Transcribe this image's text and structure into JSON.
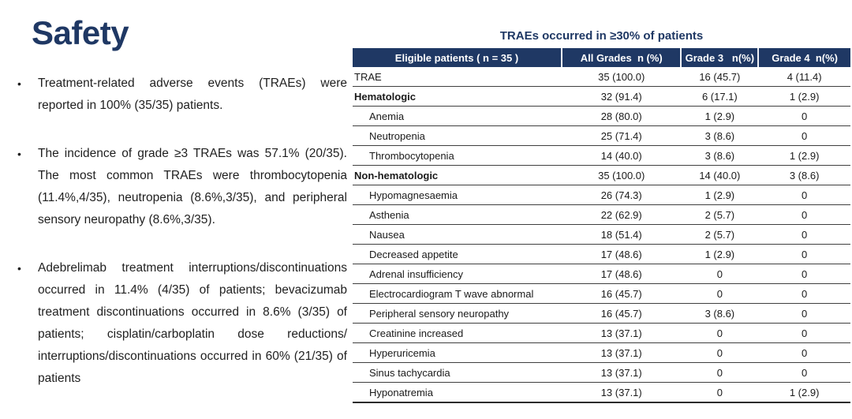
{
  "slide": {
    "title": "Safety",
    "bullet_marker": "•",
    "bullets": [
      "Treatment-related adverse events (TRAEs) were reported in 100% (35/35) patients.",
      "The incidence of grade ≥3 TRAEs was 57.1% (20/35). The most common TRAEs were thrombocytopenia (11.4%,4/35), neutropenia (8.6%,3/35), and peripheral sensory neuropathy (8.6%,3/35).",
      "Adebrelimab treatment interruptions/discontinuations occurred in 11.4% (4/35) of patients; bevacizumab treatment discontinuations occurred in 8.6% (3/35) of patients; cisplatin/carboplatin dose reductions/ interruptions/discontinuations occurred in 60% (21/35) of patients"
    ]
  },
  "table": {
    "title": "TRAEs occurred in ≥30% of patients",
    "columns": [
      "Eligible patients ( n = 35 )",
      "All Grades  n (%)",
      "Grade 3   n(%)",
      "Grade 4  n(%)"
    ],
    "rows": [
      {
        "label": "TRAE",
        "bold": false,
        "indent": false,
        "all_grades": "35 (100.0)",
        "grade3": "16 (45.7)",
        "grade4": "4 (11.4)"
      },
      {
        "label": "Hematologic",
        "bold": true,
        "indent": false,
        "all_grades": "32 (91.4)",
        "grade3": "6 (17.1)",
        "grade4": "1 (2.9)"
      },
      {
        "label": "Anemia",
        "bold": false,
        "indent": true,
        "all_grades": "28 (80.0)",
        "grade3": "1 (2.9)",
        "grade4": "0"
      },
      {
        "label": "Neutropenia",
        "bold": false,
        "indent": true,
        "all_grades": "25 (71.4)",
        "grade3": "3 (8.6)",
        "grade4": "0"
      },
      {
        "label": "Thrombocytopenia",
        "bold": false,
        "indent": true,
        "all_grades": "14 (40.0)",
        "grade3": "3 (8.6)",
        "grade4": "1 (2.9)"
      },
      {
        "label": "Non-hematologic",
        "bold": true,
        "indent": false,
        "all_grades": "35 (100.0)",
        "grade3": "14 (40.0)",
        "grade4": "3 (8.6)"
      },
      {
        "label": "Hypomagnesaemia",
        "bold": false,
        "indent": true,
        "all_grades": "26 (74.3)",
        "grade3": "1 (2.9)",
        "grade4": "0"
      },
      {
        "label": "Asthenia",
        "bold": false,
        "indent": true,
        "all_grades": "22 (62.9)",
        "grade3": "2 (5.7)",
        "grade4": "0"
      },
      {
        "label": "Nausea",
        "bold": false,
        "indent": true,
        "all_grades": "18 (51.4)",
        "grade3": "2 (5.7)",
        "grade4": "0"
      },
      {
        "label": "Decreased appetite",
        "bold": false,
        "indent": true,
        "all_grades": "17 (48.6)",
        "grade3": "1 (2.9)",
        "grade4": "0"
      },
      {
        "label": "Adrenal insufficiency",
        "bold": false,
        "indent": true,
        "all_grades": "17 (48.6)",
        "grade3": "0",
        "grade4": "0"
      },
      {
        "label": "Electrocardiogram T wave abnormal",
        "bold": false,
        "indent": true,
        "all_grades": "16 (45.7)",
        "grade3": "0",
        "grade4": "0"
      },
      {
        "label": "Peripheral sensory neuropathy",
        "bold": false,
        "indent": true,
        "all_grades": "16 (45.7)",
        "grade3": "3 (8.6)",
        "grade4": "0"
      },
      {
        "label": "Creatinine increased",
        "bold": false,
        "indent": true,
        "all_grades": "13 (37.1)",
        "grade3": "0",
        "grade4": "0"
      },
      {
        "label": "Hyperuricemia",
        "bold": false,
        "indent": true,
        "all_grades": "13 (37.1)",
        "grade3": "0",
        "grade4": "0"
      },
      {
        "label": "Sinus tachycardia",
        "bold": false,
        "indent": true,
        "all_grades": "13 (37.1)",
        "grade3": "0",
        "grade4": "0"
      },
      {
        "label": "Hyponatremia",
        "bold": false,
        "indent": true,
        "all_grades": "13 (37.1)",
        "grade3": "0",
        "grade4": "1 (2.9)"
      }
    ]
  },
  "colors": {
    "navy_accent": "#1f3864",
    "body_text": "#1f1f1f",
    "row_border": "#3f3f3f",
    "header_text": "#ffffff",
    "background": "#ffffff"
  }
}
